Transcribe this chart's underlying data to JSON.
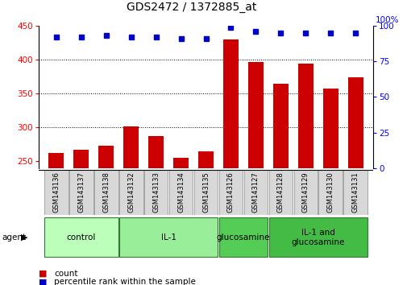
{
  "title": "GDS2472 / 1372885_at",
  "samples": [
    "GSM143136",
    "GSM143137",
    "GSM143138",
    "GSM143132",
    "GSM143133",
    "GSM143134",
    "GSM143135",
    "GSM143126",
    "GSM143127",
    "GSM143128",
    "GSM143129",
    "GSM143130",
    "GSM143131"
  ],
  "counts": [
    262,
    267,
    273,
    301,
    287,
    255,
    265,
    430,
    397,
    364,
    394,
    357,
    374
  ],
  "percentile_ranks": [
    92,
    92,
    93,
    92,
    92,
    91,
    91,
    99,
    96,
    95,
    95,
    95,
    95
  ],
  "groups": [
    {
      "label": "control",
      "start": 0,
      "end": 3,
      "color": "#bbffbb"
    },
    {
      "label": "IL-1",
      "start": 3,
      "end": 7,
      "color": "#99ee99"
    },
    {
      "label": "glucosamine",
      "start": 7,
      "end": 9,
      "color": "#55cc55"
    },
    {
      "label": "IL-1 and\nglucosamine",
      "start": 9,
      "end": 13,
      "color": "#44bb44"
    }
  ],
  "ylim_left": [
    240,
    450
  ],
  "ylim_right": [
    0,
    100
  ],
  "yticks_left": [
    250,
    300,
    350,
    400,
    450
  ],
  "yticks_right": [
    0,
    25,
    50,
    75,
    100
  ],
  "bar_color": "#cc0000",
  "dot_color": "#0000cc",
  "agent_label": "agent",
  "legend_count_label": "count",
  "legend_pct_label": "percentile rank within the sample",
  "grid_lines": [
    300,
    350,
    400
  ],
  "fig_width": 5.06,
  "fig_height": 3.54
}
